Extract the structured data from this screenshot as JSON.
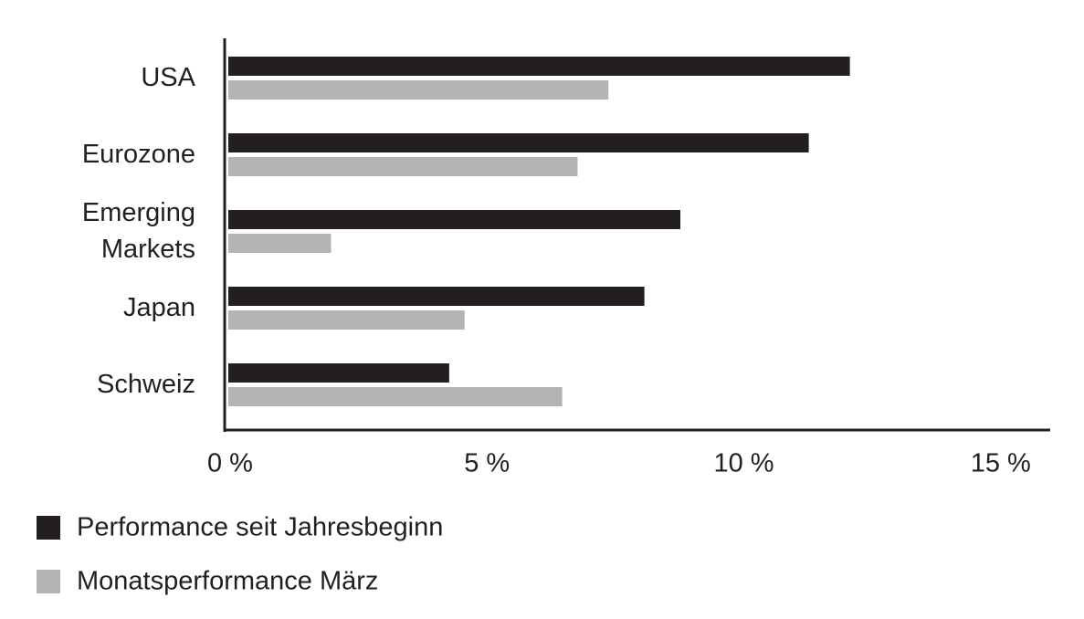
{
  "chart_data": {
    "type": "bar",
    "orientation": "horizontal",
    "categories": [
      "USA",
      "Eurozone",
      "Emerging Markets",
      "Japan",
      "Schweiz"
    ],
    "series": [
      {
        "name": "Performance seit Jahresbeginn",
        "color": "#231f20",
        "values": [
          12.1,
          11.3,
          8.8,
          8.1,
          4.3
        ]
      },
      {
        "name": "Monatsperformance März",
        "color": "#b3b3b6",
        "values": [
          7.4,
          6.8,
          2.0,
          4.6,
          6.5
        ]
      }
    ],
    "xlim": [
      0,
      16
    ],
    "xticks": [
      {
        "value": 0,
        "label": "0 %"
      },
      {
        "value": 5,
        "label": "5 %"
      },
      {
        "value": 10,
        "label": "10 %"
      },
      {
        "value": 15,
        "label": "15 %"
      }
    ],
    "legend": "bottom-left"
  }
}
